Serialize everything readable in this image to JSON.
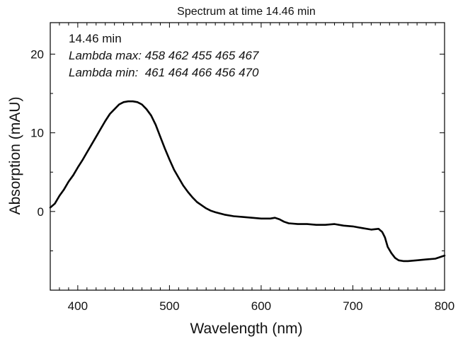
{
  "chart_data": {
    "type": "line",
    "title": "Spectrum at time 14.46 min",
    "xlabel": "Wavelength (nm)",
    "ylabel": "Absorption (mAU)",
    "xlim": [
      370,
      800
    ],
    "ylim": [
      -10,
      24
    ],
    "x_ticks": [
      400,
      500,
      600,
      700,
      800
    ],
    "x_minor_step": 10,
    "y_ticks": [
      0,
      10,
      20
    ],
    "y_minor_step": 5,
    "grid": false,
    "annotations": [
      {
        "text": "14.46 min",
        "italic": false
      },
      {
        "text": "Lambda max: 458 462 455 465 467",
        "italic": true
      },
      {
        "text": "Lambda min:  461 464 466 456 470",
        "italic": true
      }
    ],
    "series": [
      {
        "color": "#000000",
        "x": [
          370,
          375,
          380,
          385,
          390,
          395,
          400,
          405,
          410,
          415,
          420,
          425,
          430,
          435,
          440,
          445,
          450,
          455,
          460,
          465,
          470,
          475,
          480,
          485,
          490,
          495,
          500,
          505,
          510,
          515,
          520,
          525,
          530,
          535,
          540,
          545,
          550,
          560,
          570,
          580,
          590,
          600,
          610,
          615,
          620,
          625,
          630,
          640,
          650,
          660,
          670,
          680,
          690,
          700,
          710,
          720,
          728,
          732,
          735,
          738,
          742,
          746,
          750,
          755,
          760,
          770,
          780,
          790,
          800
        ],
        "y": [
          0.5,
          1.0,
          2.0,
          2.8,
          3.8,
          4.6,
          5.6,
          6.5,
          7.5,
          8.5,
          9.5,
          10.5,
          11.5,
          12.4,
          13.0,
          13.6,
          13.9,
          14.0,
          14.0,
          13.9,
          13.6,
          13.0,
          12.2,
          11.0,
          9.5,
          8.0,
          6.6,
          5.3,
          4.3,
          3.3,
          2.5,
          1.8,
          1.2,
          0.8,
          0.4,
          0.1,
          -0.1,
          -0.4,
          -0.6,
          -0.7,
          -0.8,
          -0.9,
          -0.9,
          -0.8,
          -1.0,
          -1.3,
          -1.5,
          -1.6,
          -1.6,
          -1.7,
          -1.7,
          -1.6,
          -1.8,
          -1.9,
          -2.1,
          -2.3,
          -2.2,
          -2.6,
          -3.3,
          -4.5,
          -5.3,
          -5.9,
          -6.2,
          -6.3,
          -6.3,
          -6.2,
          -6.1,
          -6.0,
          -5.6
        ]
      }
    ]
  }
}
